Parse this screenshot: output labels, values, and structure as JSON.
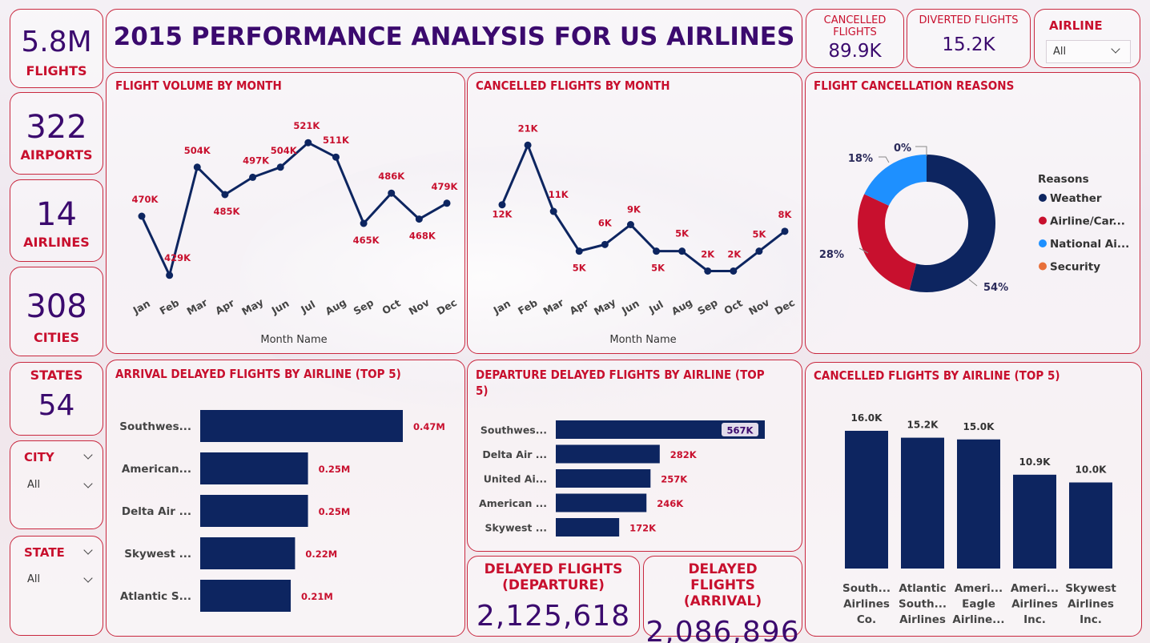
{
  "title": "2015 PERFORMANCE ANALYSIS FOR US AIRLINES",
  "kpis": {
    "flights": {
      "value": "5.8M",
      "label": "FLIGHTS"
    },
    "airports": {
      "value": "322",
      "label": "AIRPORTS"
    },
    "airlines": {
      "value": "14",
      "label": "AIRLINES"
    },
    "cities": {
      "value": "308",
      "label": "CITIES"
    },
    "states": {
      "value": "54",
      "label": "STATES"
    },
    "cancelled": {
      "value": "89.9K",
      "label": "CANCELLED FLIGHTS"
    },
    "diverted": {
      "value": "15.2K",
      "label": "DIVERTED FLIGHTS"
    },
    "delayed_departure": {
      "value": "2,125,618",
      "label": "DELAYED FLIGHTS (DEPARTURE)"
    },
    "delayed_arrival": {
      "value": "2,086,896",
      "label": "DELAYED FLIGHTS (ARRIVAL)"
    }
  },
  "slicers": {
    "airline": {
      "label": "AIRLINE",
      "value": "All"
    },
    "city": {
      "label": "CITY",
      "value": "All"
    },
    "state": {
      "label": "STATE",
      "value": "All"
    }
  },
  "colors": {
    "navy": "#0d2560",
    "accent": "#c8102e",
    "purple": "#3b0a6e",
    "light_blue": "#1e90ff",
    "orange": "#e8703a"
  },
  "chart_data": [
    {
      "type": "line",
      "title": "FLIGHT VOLUME BY MONTH",
      "xlabel": "Month Name",
      "ylabel": "",
      "categories": [
        "Jan",
        "Feb",
        "Mar",
        "Apr",
        "May",
        "Jun",
        "Jul",
        "Aug",
        "Sep",
        "Oct",
        "Nov",
        "Dec"
      ],
      "values": [
        470,
        429,
        504,
        485,
        497,
        504,
        521,
        511,
        465,
        486,
        468,
        479
      ],
      "labels": [
        "470K",
        "429K",
        "504K",
        "485K",
        "497K",
        "504K",
        "521K",
        "511K",
        "465K",
        "486K",
        "468K",
        "479K"
      ],
      "ylim": [
        425,
        525
      ]
    },
    {
      "type": "line",
      "title": "CANCELLED FLIGHTS BY MONTH",
      "xlabel": "Month Name",
      "ylabel": "",
      "categories": [
        "Jan",
        "Feb",
        "Mar",
        "Apr",
        "May",
        "Jun",
        "Jul",
        "Aug",
        "Sep",
        "Oct",
        "Nov",
        "Dec"
      ],
      "values": [
        12,
        21,
        11,
        5,
        6,
        9,
        5,
        5,
        2,
        2,
        5,
        8
      ],
      "labels": [
        "12K",
        "21K",
        "11K",
        "5K",
        "6K",
        "9K",
        "5K",
        "5K",
        "2K",
        "2K",
        "5K",
        "8K"
      ],
      "ylim": [
        0,
        22
      ]
    },
    {
      "type": "pie",
      "title": "FLIGHT CANCELLATION REASONS",
      "legend_title": "Reasons",
      "categories": [
        "Weather",
        "Airline/Car...",
        "National Ai...",
        "Security"
      ],
      "values": [
        54,
        28,
        18,
        0
      ],
      "labels": [
        "54%",
        "28%",
        "18%",
        "0%"
      ],
      "colors": [
        "#0d2560",
        "#c8102e",
        "#1e90ff",
        "#e8703a"
      ]
    },
    {
      "type": "bar",
      "title": "ARRIVAL DELAYED FLIGHTS BY AIRLINE (TOP 5)",
      "categories": [
        "Southwes...",
        "American...",
        "Delta Air ...",
        "Skywest ...",
        "Atlantic S..."
      ],
      "values": [
        0.47,
        0.25,
        0.25,
        0.22,
        0.21
      ],
      "labels": [
        "0.47M",
        "0.25M",
        "0.25M",
        "0.22M",
        "0.21M"
      ],
      "xlim": [
        0,
        0.47
      ]
    },
    {
      "type": "bar",
      "title": "DEPARTURE DELAYED FLIGHTS BY AIRLINE (TOP 5)",
      "categories": [
        "Southwes...",
        "Delta Air ...",
        "United Ai...",
        "American ...",
        "Skywest ..."
      ],
      "values": [
        567,
        282,
        257,
        246,
        172
      ],
      "labels": [
        "567K",
        "282K",
        "257K",
        "246K",
        "172K"
      ],
      "xlim": [
        0,
        567
      ]
    },
    {
      "type": "bar",
      "title": "CANCELLED FLIGHTS BY AIRLINE (TOP 5)",
      "categories": [
        [
          "South...",
          "Airlines",
          "Co."
        ],
        [
          "Atlantic",
          "South...",
          "Airlines"
        ],
        [
          "Ameri...",
          "Eagle",
          "Airline..."
        ],
        [
          "Ameri...",
          "Airlines",
          "Inc."
        ],
        [
          "Skywest",
          "Airlines",
          "Inc."
        ]
      ],
      "values": [
        16.0,
        15.2,
        15.0,
        10.9,
        10.0
      ],
      "labels": [
        "16.0K",
        "15.2K",
        "15.0K",
        "10.9K",
        "10.0K"
      ],
      "ylim": [
        0,
        16
      ]
    }
  ]
}
